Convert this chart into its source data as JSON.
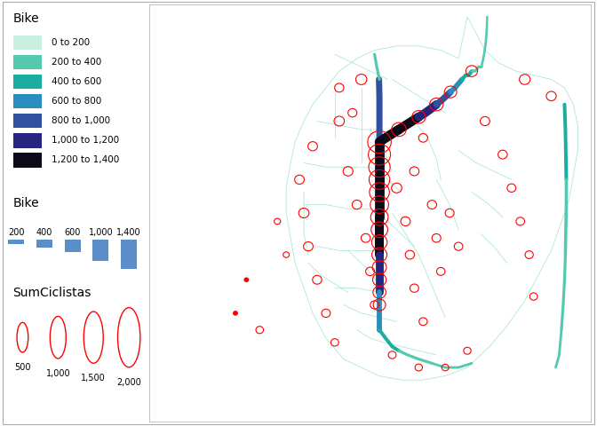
{
  "background_color": "#ffffff",
  "legend_color_title": "Bike",
  "legend_color_entries": [
    {
      "label": "0 to 200",
      "color": "#c8f0e0"
    },
    {
      "label": "200 to 400",
      "color": "#55c9b0"
    },
    {
      "label": "400 to 600",
      "color": "#1aada0"
    },
    {
      "label": "600 to 800",
      "color": "#2b8cbe"
    },
    {
      "label": "800 to 1,000",
      "color": "#3050a0"
    },
    {
      "label": "1,000 to 1,200",
      "color": "#252580"
    },
    {
      "label": "1,200 to 1,400",
      "color": "#0a0a18"
    }
  ],
  "legend_width_title": "Bike",
  "legend_width_values": [
    200,
    400,
    600,
    1000,
    1400
  ],
  "legend_width_color": "#5b8ec9",
  "legend_circle_title": "SumCiclistas",
  "legend_circle_values": [
    500,
    1000,
    1500,
    2000
  ],
  "light_network_color": "#aee8d4",
  "light_network_lw": 0.6,
  "fig_width": 6.72,
  "fig_height": 4.8,
  "dpi": 100,
  "map_xlim": [
    0,
    1
  ],
  "map_ylim": [
    0,
    1
  ]
}
